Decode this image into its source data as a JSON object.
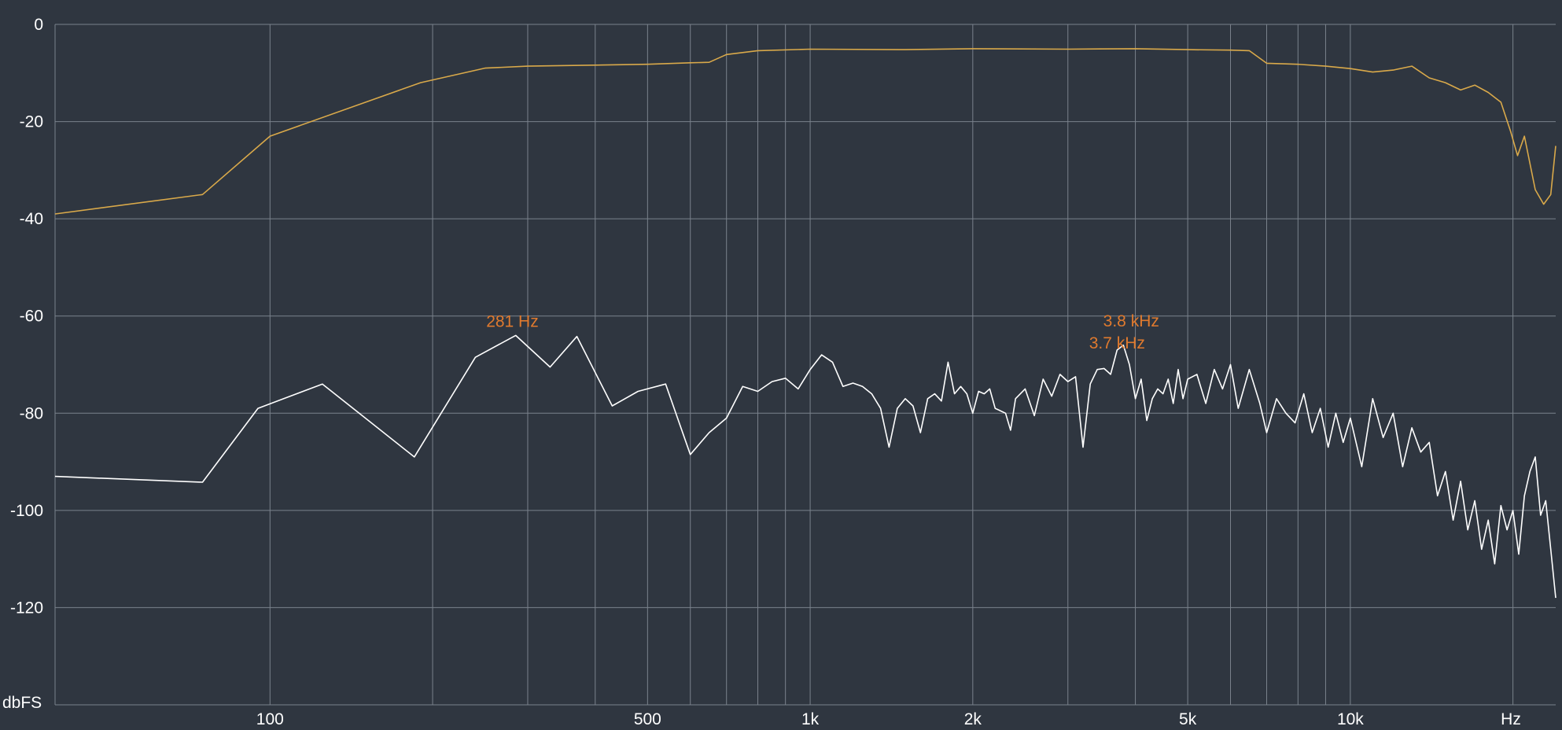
{
  "chart_data": {
    "type": "line",
    "title": "",
    "xlabel": "Hz",
    "ylabel": "dbFS",
    "x_scale": "log",
    "xlim": [
      40,
      24000
    ],
    "ylim": [
      -140,
      0
    ],
    "x_ticks": [
      {
        "value": 100,
        "label": "100"
      },
      {
        "value": 500,
        "label": "500"
      },
      {
        "value": 1000,
        "label": "1k"
      },
      {
        "value": 2000,
        "label": "2k"
      },
      {
        "value": 5000,
        "label": "5k"
      },
      {
        "value": 10000,
        "label": "10k"
      }
    ],
    "x_gridlines": [
      100,
      200,
      300,
      400,
      500,
      600,
      700,
      800,
      900,
      1000,
      2000,
      3000,
      4000,
      5000,
      6000,
      7000,
      8000,
      9000,
      10000,
      20000
    ],
    "y_ticks": [
      0,
      -20,
      -40,
      -60,
      -80,
      -100,
      -120
    ],
    "grid": true,
    "colors": {
      "background": "#2f3640",
      "grid": "#7a828c",
      "axis_text": "#ffffff",
      "annotation": "#e07a2e"
    },
    "series": [
      {
        "color": "#d9a94a",
        "points": [
          [
            40,
            -39
          ],
          [
            75,
            -35
          ],
          [
            100,
            -23
          ],
          [
            190,
            -12
          ],
          [
            250,
            -9
          ],
          [
            300,
            -8.6
          ],
          [
            500,
            -8.2
          ],
          [
            600,
            -7.9
          ],
          [
            650,
            -7.8
          ],
          [
            700,
            -6.2
          ],
          [
            800,
            -5.4
          ],
          [
            1000,
            -5.1
          ],
          [
            1500,
            -5.2
          ],
          [
            2000,
            -5
          ],
          [
            3000,
            -5.1
          ],
          [
            4000,
            -5
          ],
          [
            5000,
            -5.2
          ],
          [
            6000,
            -5.3
          ],
          [
            6500,
            -5.4
          ],
          [
            7000,
            -8
          ],
          [
            8000,
            -8.2
          ],
          [
            9000,
            -8.6
          ],
          [
            10000,
            -9.1
          ],
          [
            11000,
            -9.8
          ],
          [
            12000,
            -9.4
          ],
          [
            13000,
            -8.6
          ],
          [
            14000,
            -11
          ],
          [
            15000,
            -12
          ],
          [
            16000,
            -13.5
          ],
          [
            17000,
            -12.5
          ],
          [
            18000,
            -14
          ],
          [
            19000,
            -16
          ],
          [
            19800,
            -22
          ],
          [
            20400,
            -27
          ],
          [
            21000,
            -23
          ],
          [
            22000,
            -34
          ],
          [
            22800,
            -37
          ],
          [
            23500,
            -35
          ],
          [
            24000,
            -25
          ]
        ]
      },
      {
        "color": "#ffffff",
        "points": [
          [
            40,
            -93
          ],
          [
            75,
            -94.2
          ],
          [
            95,
            -79
          ],
          [
            125,
            -74
          ],
          [
            185,
            -89
          ],
          [
            240,
            -68.5
          ],
          [
            285,
            -64
          ],
          [
            330,
            -70.5
          ],
          [
            370,
            -64.2
          ],
          [
            430,
            -78.5
          ],
          [
            480,
            -75.5
          ],
          [
            540,
            -74
          ],
          [
            600,
            -88.5
          ],
          [
            650,
            -84
          ],
          [
            700,
            -81
          ],
          [
            750,
            -74.5
          ],
          [
            800,
            -75.5
          ],
          [
            850,
            -73.5
          ],
          [
            900,
            -72.8
          ],
          [
            950,
            -75
          ],
          [
            1000,
            -71
          ],
          [
            1050,
            -68
          ],
          [
            1100,
            -69.5
          ],
          [
            1150,
            -74.5
          ],
          [
            1200,
            -73.8
          ],
          [
            1250,
            -74.5
          ],
          [
            1300,
            -76
          ],
          [
            1350,
            -79
          ],
          [
            1400,
            -87
          ],
          [
            1450,
            -79
          ],
          [
            1500,
            -77
          ],
          [
            1550,
            -78.5
          ],
          [
            1600,
            -84
          ],
          [
            1650,
            -77
          ],
          [
            1700,
            -76
          ],
          [
            1750,
            -77.5
          ],
          [
            1800,
            -69.5
          ],
          [
            1850,
            -76
          ],
          [
            1900,
            -74.5
          ],
          [
            1950,
            -76
          ],
          [
            2000,
            -80
          ],
          [
            2050,
            -75.5
          ],
          [
            2100,
            -76
          ],
          [
            2150,
            -75
          ],
          [
            2200,
            -79
          ],
          [
            2300,
            -80
          ],
          [
            2350,
            -83.5
          ],
          [
            2400,
            -77
          ],
          [
            2500,
            -75
          ],
          [
            2600,
            -80.5
          ],
          [
            2700,
            -73
          ],
          [
            2800,
            -76.5
          ],
          [
            2900,
            -72
          ],
          [
            3000,
            -73.5
          ],
          [
            3100,
            -72.5
          ],
          [
            3200,
            -87
          ],
          [
            3300,
            -74
          ],
          [
            3400,
            -71
          ],
          [
            3500,
            -70.8
          ],
          [
            3600,
            -72
          ],
          [
            3700,
            -67
          ],
          [
            3800,
            -66
          ],
          [
            3900,
            -70
          ],
          [
            4000,
            -77
          ],
          [
            4100,
            -73
          ],
          [
            4200,
            -81.5
          ],
          [
            4300,
            -77
          ],
          [
            4400,
            -75
          ],
          [
            4500,
            -76
          ],
          [
            4600,
            -73
          ],
          [
            4700,
            -78
          ],
          [
            4800,
            -71
          ],
          [
            4900,
            -77
          ],
          [
            5000,
            -73
          ],
          [
            5200,
            -72
          ],
          [
            5400,
            -78
          ],
          [
            5600,
            -71
          ],
          [
            5800,
            -75
          ],
          [
            6000,
            -70
          ],
          [
            6200,
            -79
          ],
          [
            6500,
            -71
          ],
          [
            6800,
            -78
          ],
          [
            7000,
            -84
          ],
          [
            7300,
            -77
          ],
          [
            7600,
            -80
          ],
          [
            7900,
            -82
          ],
          [
            8200,
            -76
          ],
          [
            8500,
            -84
          ],
          [
            8800,
            -79
          ],
          [
            9100,
            -87
          ],
          [
            9400,
            -80
          ],
          [
            9700,
            -86
          ],
          [
            10000,
            -81
          ],
          [
            10500,
            -91
          ],
          [
            11000,
            -77
          ],
          [
            11500,
            -85
          ],
          [
            12000,
            -80
          ],
          [
            12500,
            -91
          ],
          [
            13000,
            -83
          ],
          [
            13500,
            -88
          ],
          [
            14000,
            -86
          ],
          [
            14500,
            -97
          ],
          [
            15000,
            -92
          ],
          [
            15500,
            -102
          ],
          [
            16000,
            -94
          ],
          [
            16500,
            -104
          ],
          [
            17000,
            -98
          ],
          [
            17500,
            -108
          ],
          [
            18000,
            -102
          ],
          [
            18500,
            -111
          ],
          [
            19000,
            -99
          ],
          [
            19500,
            -104
          ],
          [
            20000,
            -100
          ],
          [
            20500,
            -109
          ],
          [
            21000,
            -97
          ],
          [
            21500,
            -92
          ],
          [
            22000,
            -89
          ],
          [
            22500,
            -101
          ],
          [
            23000,
            -98
          ],
          [
            23500,
            -108
          ],
          [
            24000,
            -118
          ]
        ]
      }
    ],
    "annotations": [
      {
        "text": "281 Hz",
        "x": 281,
        "y": -64
      },
      {
        "text": "3.8 kHz",
        "x": 3800,
        "y": -66
      },
      {
        "text": "3.7 kHz",
        "x": 3700,
        "y": -67
      }
    ]
  }
}
